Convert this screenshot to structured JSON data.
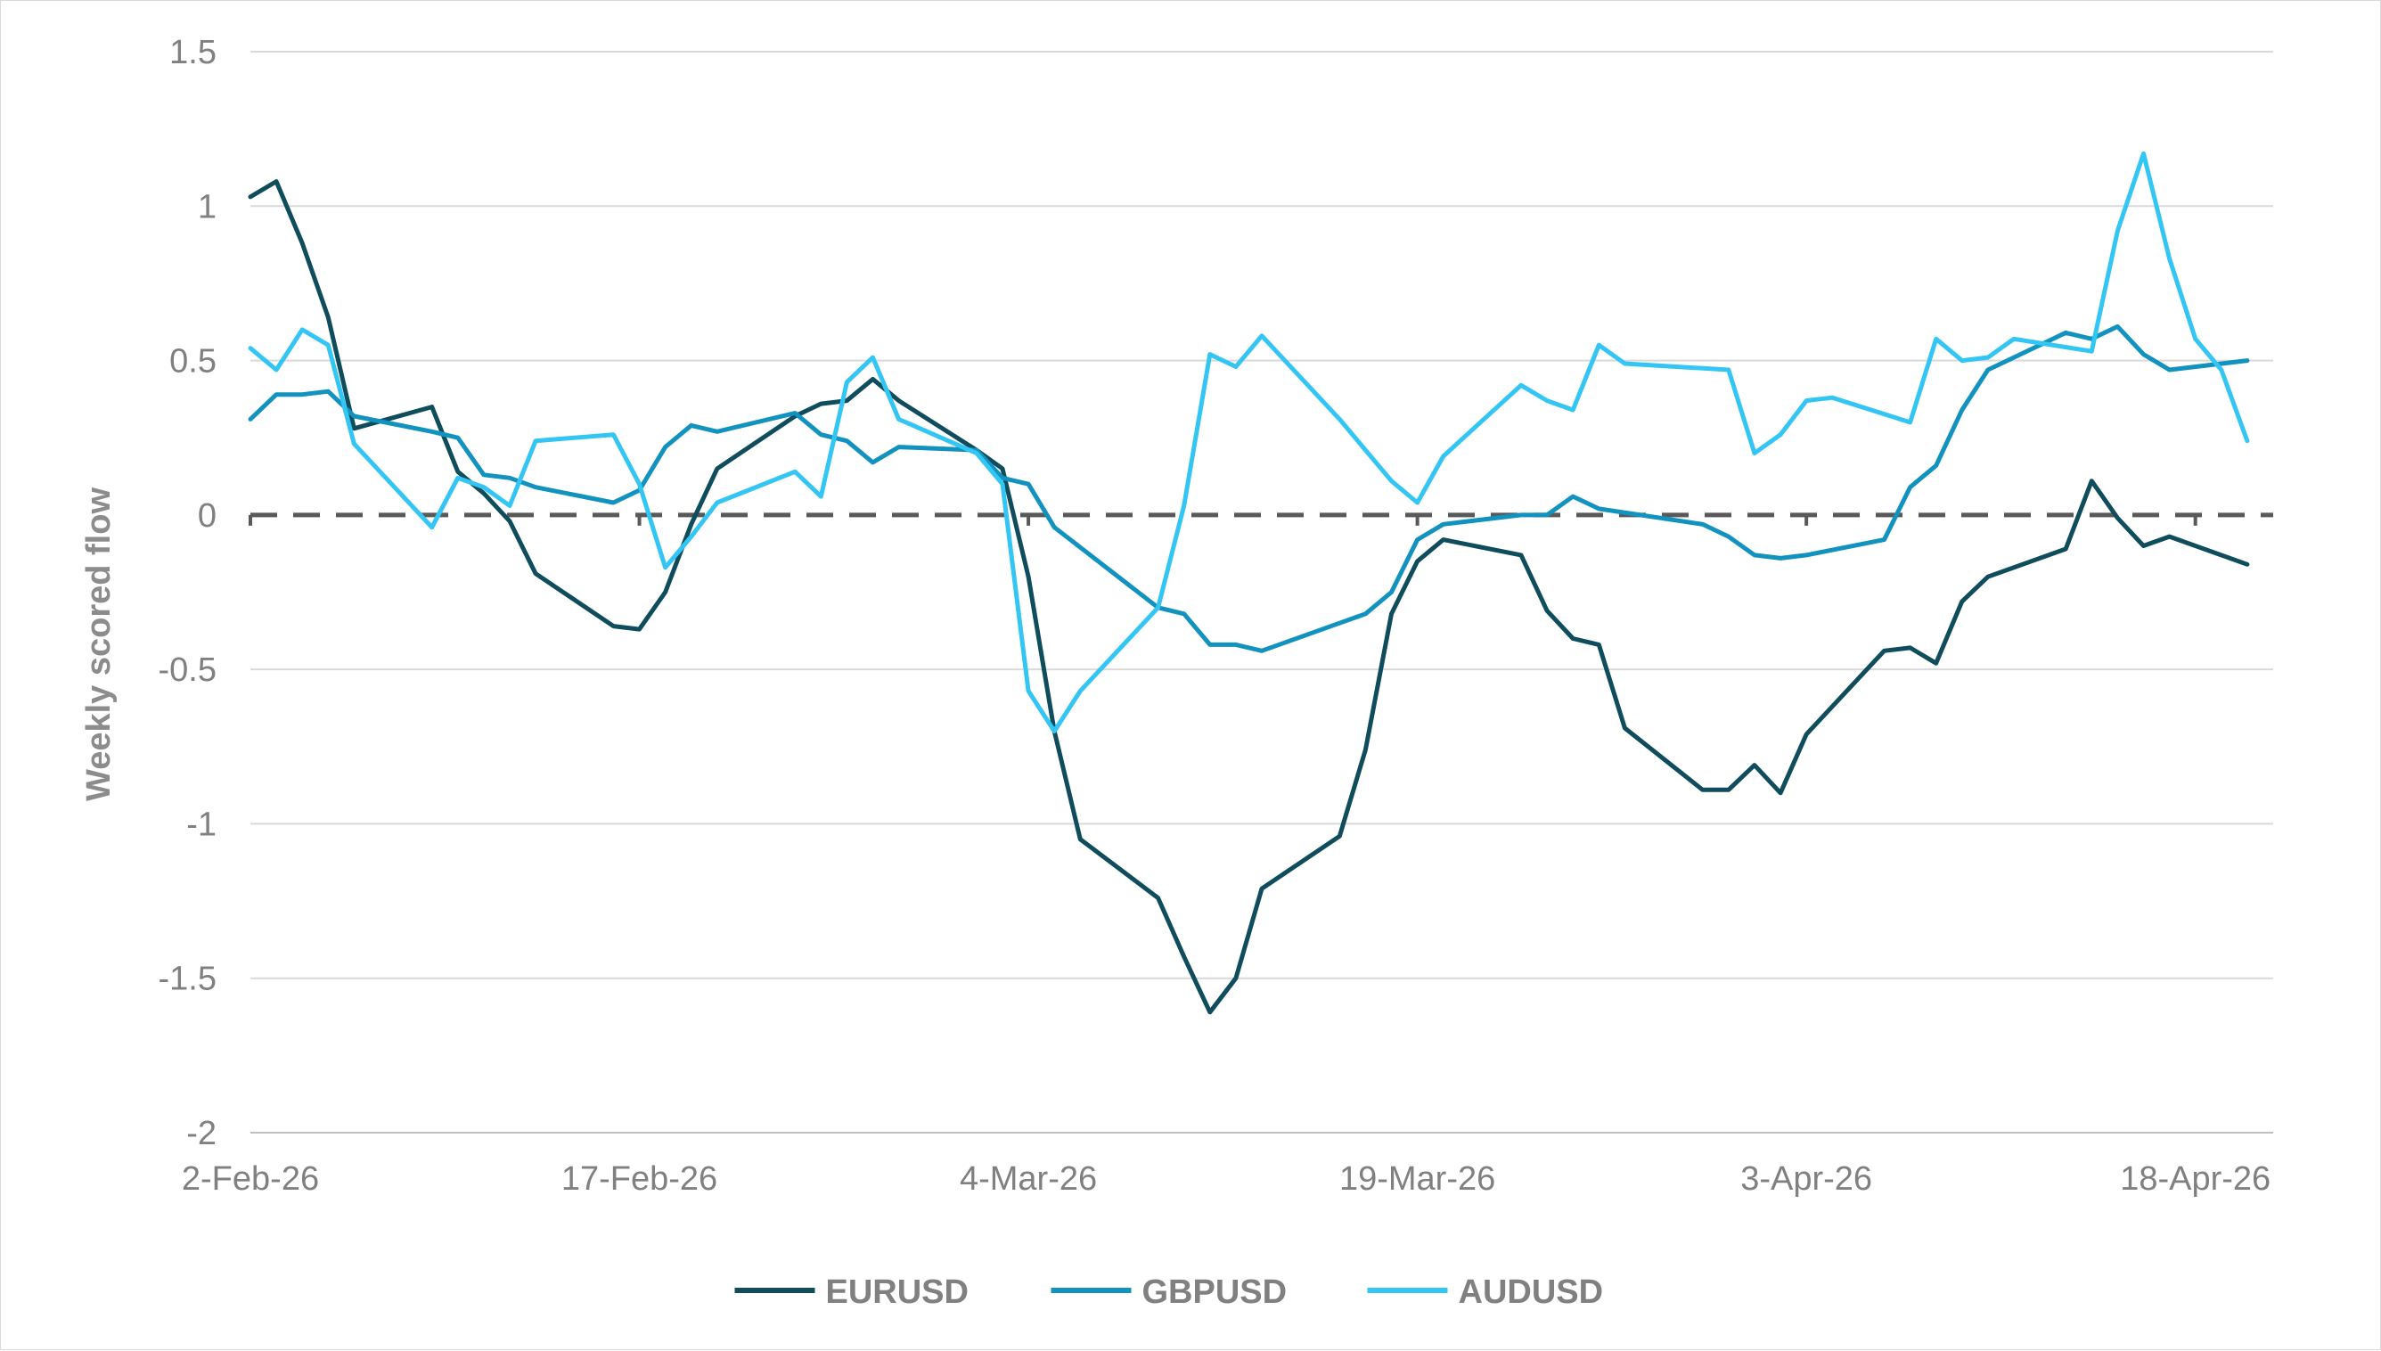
{
  "chart_data": {
    "type": "line",
    "ylabel": "Weekly scored flow",
    "xlabel": "",
    "ylim": [
      -2,
      1.5
    ],
    "yticks": [
      1.5,
      1,
      0.5,
      0,
      -0.5,
      -1,
      -1.5,
      -2
    ],
    "ytick_labels": [
      "1.5",
      "1",
      "0.5",
      "0",
      "-0.5",
      "-1",
      "-1.5",
      "-2"
    ],
    "xlim": [
      "2026-02-02",
      "2026-04-21"
    ],
    "xticks": [
      "2026-02-02",
      "2026-02-17",
      "2026-03-04",
      "2026-03-19",
      "2026-04-03",
      "2026-04-18"
    ],
    "xtick_labels": [
      "2-Feb-26",
      "17-Feb-26",
      "4-Mar-26",
      "19-Mar-26",
      "3-Apr-26",
      "18-Apr-26"
    ],
    "zero_line": {
      "value": 0,
      "style": "dashed",
      "color": "#595959"
    },
    "grid": "horizontal",
    "legend_position": "bottom",
    "series": [
      {
        "name": "EURUSD",
        "color": "#0f4c5c",
        "points": [
          [
            "2026-02-02",
            1.03
          ],
          [
            "2026-02-03",
            1.08
          ],
          [
            "2026-02-04",
            0.88
          ],
          [
            "2026-02-05",
            0.64
          ],
          [
            "2026-02-06",
            0.28
          ],
          [
            "2026-02-09",
            0.35
          ],
          [
            "2026-02-10",
            0.14
          ],
          [
            "2026-02-11",
            0.07
          ],
          [
            "2026-02-12",
            -0.02
          ],
          [
            "2026-02-13",
            -0.19
          ],
          [
            "2026-02-16",
            -0.36
          ],
          [
            "2026-02-17",
            -0.37
          ],
          [
            "2026-02-18",
            -0.25
          ],
          [
            "2026-02-19",
            -0.03
          ],
          [
            "2026-02-20",
            0.15
          ],
          [
            "2026-02-23",
            0.32
          ],
          [
            "2026-02-24",
            0.36
          ],
          [
            "2026-02-25",
            0.37
          ],
          [
            "2026-02-26",
            0.44
          ],
          [
            "2026-02-27",
            0.37
          ],
          [
            "2026-03-02",
            0.21
          ],
          [
            "2026-03-03",
            0.15
          ],
          [
            "2026-03-04",
            -0.2
          ],
          [
            "2026-03-05",
            -0.7
          ],
          [
            "2026-03-06",
            -1.05
          ],
          [
            "2026-03-09",
            -1.24
          ],
          [
            "2026-03-10",
            -1.43
          ],
          [
            "2026-03-11",
            -1.61
          ],
          [
            "2026-03-12",
            -1.5
          ],
          [
            "2026-03-13",
            -1.21
          ],
          [
            "2026-03-16",
            -1.04
          ],
          [
            "2026-03-17",
            -0.76
          ],
          [
            "2026-03-18",
            -0.32
          ],
          [
            "2026-03-19",
            -0.15
          ],
          [
            "2026-03-20",
            -0.08
          ],
          [
            "2026-03-23",
            -0.13
          ],
          [
            "2026-03-24",
            -0.31
          ],
          [
            "2026-03-25",
            -0.4
          ],
          [
            "2026-03-26",
            -0.42
          ],
          [
            "2026-03-27",
            -0.69
          ],
          [
            "2026-03-30",
            -0.89
          ],
          [
            "2026-03-31",
            -0.89
          ],
          [
            "2026-04-01",
            -0.81
          ],
          [
            "2026-04-02",
            -0.9
          ],
          [
            "2026-04-03",
            -0.71
          ],
          [
            "2026-04-06",
            -0.44
          ],
          [
            "2026-04-07",
            -0.43
          ],
          [
            "2026-04-08",
            -0.48
          ],
          [
            "2026-04-09",
            -0.28
          ],
          [
            "2026-04-10",
            -0.2
          ],
          [
            "2026-04-13",
            -0.11
          ],
          [
            "2026-04-14",
            0.11
          ],
          [
            "2026-04-15",
            -0.01
          ],
          [
            "2026-04-16",
            -0.1
          ],
          [
            "2026-04-17",
            -0.07
          ],
          [
            "2026-04-20",
            -0.16
          ]
        ]
      },
      {
        "name": "GBPUSD",
        "color": "#1192bf",
        "points": [
          [
            "2026-02-02",
            0.31
          ],
          [
            "2026-02-03",
            0.39
          ],
          [
            "2026-02-04",
            0.39
          ],
          [
            "2026-02-05",
            0.4
          ],
          [
            "2026-02-06",
            0.32
          ],
          [
            "2026-02-09",
            0.27
          ],
          [
            "2026-02-10",
            0.25
          ],
          [
            "2026-02-11",
            0.13
          ],
          [
            "2026-02-12",
            0.12
          ],
          [
            "2026-02-13",
            0.09
          ],
          [
            "2026-02-16",
            0.04
          ],
          [
            "2026-02-17",
            0.08
          ],
          [
            "2026-02-18",
            0.22
          ],
          [
            "2026-02-19",
            0.29
          ],
          [
            "2026-02-20",
            0.27
          ],
          [
            "2026-02-23",
            0.33
          ],
          [
            "2026-02-24",
            0.26
          ],
          [
            "2026-02-25",
            0.24
          ],
          [
            "2026-02-26",
            0.17
          ],
          [
            "2026-02-27",
            0.22
          ],
          [
            "2026-03-02",
            0.21
          ],
          [
            "2026-03-03",
            0.12
          ],
          [
            "2026-03-04",
            0.1
          ],
          [
            "2026-03-05",
            -0.04
          ],
          [
            "2026-03-09",
            -0.3
          ],
          [
            "2026-03-10",
            -0.32
          ],
          [
            "2026-03-11",
            -0.42
          ],
          [
            "2026-03-12",
            -0.42
          ],
          [
            "2026-03-13",
            -0.44
          ],
          [
            "2026-03-16",
            -0.35
          ],
          [
            "2026-03-17",
            -0.32
          ],
          [
            "2026-03-18",
            -0.25
          ],
          [
            "2026-03-19",
            -0.08
          ],
          [
            "2026-03-20",
            -0.03
          ],
          [
            "2026-03-23",
            0.0
          ],
          [
            "2026-03-24",
            0.0
          ],
          [
            "2026-03-25",
            0.06
          ],
          [
            "2026-03-26",
            0.02
          ],
          [
            "2026-03-30",
            -0.03
          ],
          [
            "2026-03-31",
            -0.07
          ],
          [
            "2026-04-01",
            -0.13
          ],
          [
            "2026-04-02",
            -0.14
          ],
          [
            "2026-04-03",
            -0.13
          ],
          [
            "2026-04-06",
            -0.08
          ],
          [
            "2026-04-07",
            0.09
          ],
          [
            "2026-04-08",
            0.16
          ],
          [
            "2026-04-09",
            0.34
          ],
          [
            "2026-04-10",
            0.47
          ],
          [
            "2026-04-13",
            0.59
          ],
          [
            "2026-04-14",
            0.57
          ],
          [
            "2026-04-15",
            0.61
          ],
          [
            "2026-04-16",
            0.52
          ],
          [
            "2026-04-17",
            0.47
          ],
          [
            "2026-04-20",
            0.5
          ]
        ]
      },
      {
        "name": "AUDUSD",
        "color": "#33c6f4",
        "points": [
          [
            "2026-02-02",
            0.54
          ],
          [
            "2026-02-03",
            0.47
          ],
          [
            "2026-02-04",
            0.6
          ],
          [
            "2026-02-05",
            0.55
          ],
          [
            "2026-02-06",
            0.23
          ],
          [
            "2026-02-09",
            -0.04
          ],
          [
            "2026-02-10",
            0.12
          ],
          [
            "2026-02-11",
            0.09
          ],
          [
            "2026-02-12",
            0.03
          ],
          [
            "2026-02-13",
            0.24
          ],
          [
            "2026-02-16",
            0.26
          ],
          [
            "2026-02-17",
            0.1
          ],
          [
            "2026-02-18",
            -0.17
          ],
          [
            "2026-02-19",
            -0.07
          ],
          [
            "2026-02-20",
            0.04
          ],
          [
            "2026-02-23",
            0.14
          ],
          [
            "2026-02-24",
            0.06
          ],
          [
            "2026-02-25",
            0.43
          ],
          [
            "2026-02-26",
            0.51
          ],
          [
            "2026-02-27",
            0.31
          ],
          [
            "2026-03-02",
            0.2
          ],
          [
            "2026-03-03",
            0.1
          ],
          [
            "2026-03-04",
            -0.57
          ],
          [
            "2026-03-05",
            -0.7
          ],
          [
            "2026-03-06",
            -0.57
          ],
          [
            "2026-03-09",
            -0.3
          ],
          [
            "2026-03-10",
            0.03
          ],
          [
            "2026-03-11",
            0.52
          ],
          [
            "2026-03-12",
            0.48
          ],
          [
            "2026-03-13",
            0.58
          ],
          [
            "2026-03-16",
            0.31
          ],
          [
            "2026-03-17",
            0.21
          ],
          [
            "2026-03-18",
            0.11
          ],
          [
            "2026-03-19",
            0.04
          ],
          [
            "2026-03-20",
            0.19
          ],
          [
            "2026-03-23",
            0.42
          ],
          [
            "2026-03-24",
            0.37
          ],
          [
            "2026-03-25",
            0.34
          ],
          [
            "2026-03-26",
            0.55
          ],
          [
            "2026-03-27",
            0.49
          ],
          [
            "2026-03-31",
            0.47
          ],
          [
            "2026-04-01",
            0.2
          ],
          [
            "2026-04-02",
            0.26
          ],
          [
            "2026-04-03",
            0.37
          ],
          [
            "2026-04-04",
            0.38
          ],
          [
            "2026-04-07",
            0.3
          ],
          [
            "2026-04-08",
            0.57
          ],
          [
            "2026-04-09",
            0.5
          ],
          [
            "2026-04-10",
            0.51
          ],
          [
            "2026-04-11",
            0.57
          ],
          [
            "2026-04-14",
            0.53
          ],
          [
            "2026-04-15",
            0.92
          ],
          [
            "2026-04-16",
            1.17
          ],
          [
            "2026-04-17",
            0.83
          ],
          [
            "2026-04-18",
            0.57
          ],
          [
            "2026-04-19",
            0.47
          ],
          [
            "2026-04-20",
            0.24
          ]
        ]
      }
    ]
  }
}
